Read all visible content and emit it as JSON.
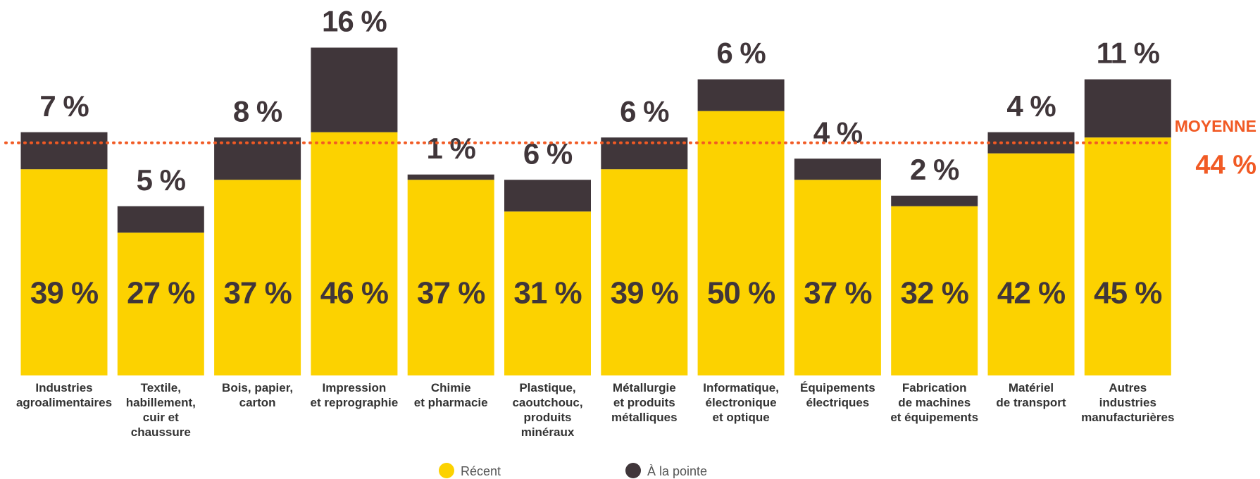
{
  "chart_data": {
    "type": "stacked_bar",
    "categories": [
      "Industries\nagroalimentaires",
      "Textile,\nhabillement,\ncuir et\nchaussure",
      "Bois, papier,\ncarton",
      "Impression\net reprographie",
      "Chimie\net pharmacie",
      "Plastique,\ncaoutchouc,\nproduits\nminéraux",
      "Métallurgie\net produits\nmétalliques",
      "Informatique,\nélectronique\net optique",
      "Équipements\nélectriques",
      "Fabrication\nde machines\net équipements",
      "Matériel\nde transport",
      "Autres\nindustries\nmanufacturières"
    ],
    "series": [
      {
        "name": "Récent",
        "color": "#fcd200",
        "values": [
          39,
          27,
          37,
          46,
          37,
          31,
          39,
          50,
          37,
          32,
          42,
          45
        ],
        "value_labels": [
          "39 %",
          "27 %",
          "37 %",
          "46 %",
          "37 %",
          "31 %",
          "39 %",
          "50 %",
          "37 %",
          "32 %",
          "42 %",
          "45 %"
        ]
      },
      {
        "name": "À la pointe",
        "color": "#40363a",
        "values": [
          7,
          5,
          8,
          16,
          1,
          6,
          6,
          6,
          4,
          2,
          4,
          11
        ],
        "value_labels": [
          "7 %",
          "5 %",
          "8 %",
          "16 %",
          "1 %",
          "6 %",
          "6 %",
          "6 %",
          "4 %",
          "2 %",
          "4 %",
          "11 %"
        ]
      }
    ],
    "ylim": [
      0,
      71
    ],
    "average": 44,
    "average_label": "44 %",
    "average_title": "MOYENNE",
    "average_color": "#f15a24"
  }
}
